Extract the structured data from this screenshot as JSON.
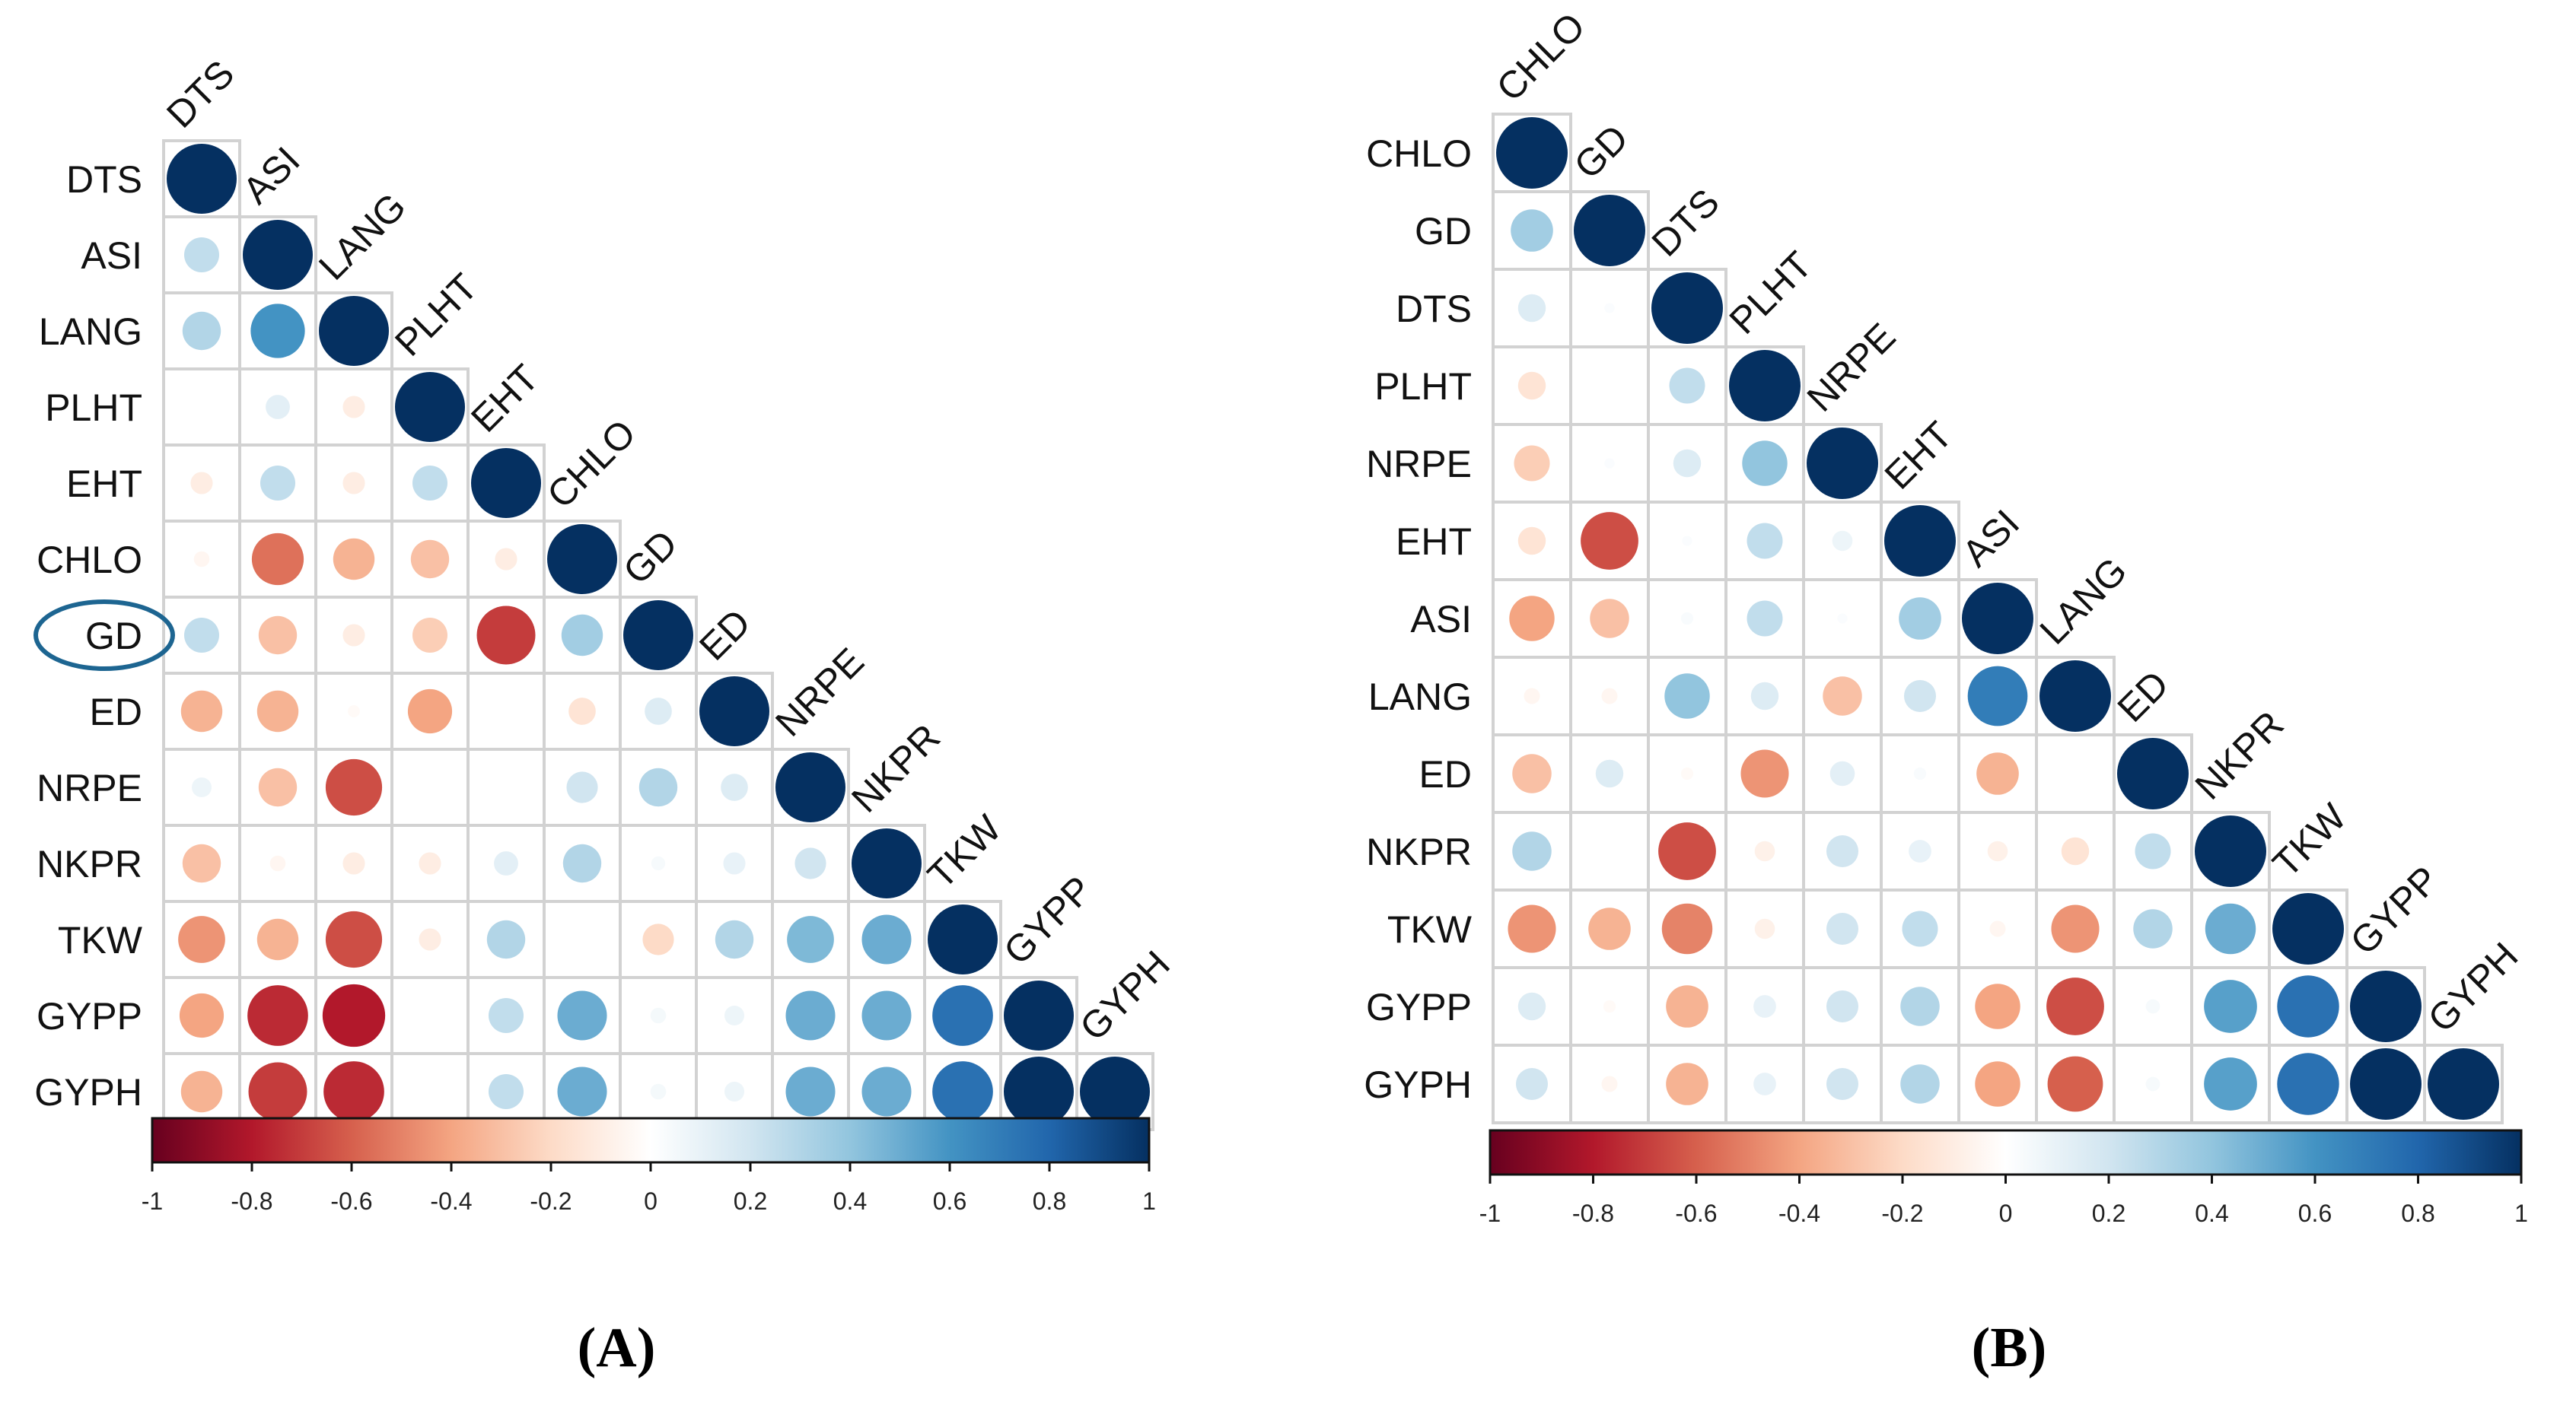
{
  "figure": {
    "caption_a": "(A)",
    "caption_b": "(B)",
    "circled_variable": "GD"
  },
  "chart_data": [
    {
      "type": "heatmap",
      "subtype": "correlation-circle-lower-triangle",
      "panel": "A",
      "title": "",
      "variables": [
        "DTS",
        "ASI",
        "LANG",
        "PLHT",
        "EHT",
        "CHLO",
        "GD",
        "ED",
        "NRPE",
        "NKPR",
        "TKW",
        "GYPP",
        "GYPH"
      ],
      "highlighted_variable": "GD",
      "colorbar": {
        "range": [
          -1,
          1
        ],
        "ticks": [
          "-1",
          "-0.8",
          "-0.6",
          "-0.4",
          "-0.2",
          "0",
          "0.2",
          "0.4",
          "0.6",
          "0.8",
          "1"
        ]
      },
      "matrix": [
        [
          1
        ],
        [
          0.25,
          1
        ],
        [
          0.3,
          0.6,
          1
        ],
        [
          0.0,
          0.12,
          -0.1,
          1
        ],
        [
          -0.1,
          0.25,
          -0.1,
          0.25,
          1
        ],
        [
          -0.05,
          -0.55,
          -0.35,
          -0.3,
          -0.1,
          1
        ],
        [
          0.25,
          -0.3,
          -0.1,
          -0.25,
          -0.7,
          0.35,
          1
        ],
        [
          -0.35,
          -0.35,
          -0.03,
          -0.4,
          0.0,
          -0.15,
          0.15,
          1
        ],
        [
          0.08,
          -0.3,
          -0.65,
          0.0,
          0.0,
          0.2,
          0.3,
          0.15,
          1
        ],
        [
          -0.3,
          -0.05,
          -0.1,
          -0.1,
          0.12,
          0.3,
          0.04,
          0.1,
          0.2,
          1
        ],
        [
          -0.45,
          -0.35,
          -0.65,
          -0.1,
          0.3,
          0.0,
          -0.2,
          0.3,
          0.45,
          0.5,
          1
        ],
        [
          -0.4,
          -0.75,
          -0.8,
          0.0,
          0.25,
          0.5,
          0.05,
          0.08,
          0.5,
          0.5,
          0.75,
          1
        ],
        [
          -0.35,
          -0.7,
          -0.75,
          0.0,
          0.25,
          0.5,
          0.05,
          0.08,
          0.5,
          0.5,
          0.75,
          1.0,
          1
        ]
      ]
    },
    {
      "type": "heatmap",
      "subtype": "correlation-circle-lower-triangle",
      "panel": "B",
      "title": "",
      "variables": [
        "CHLO",
        "GD",
        "DTS",
        "PLHT",
        "NRPE",
        "EHT",
        "ASI",
        "LANG",
        "ED",
        "NKPR",
        "TKW",
        "GYPP",
        "GYPH"
      ],
      "colorbar": {
        "range": [
          -1,
          1
        ],
        "ticks": [
          "-1",
          "-0.8",
          "-0.6",
          "-0.4",
          "-0.2",
          "0",
          "0.2",
          "0.4",
          "0.6",
          "0.8",
          "1"
        ]
      },
      "matrix": [
        [
          1
        ],
        [
          0.35,
          1
        ],
        [
          0.15,
          0.02,
          1
        ],
        [
          -0.15,
          0.0,
          0.25,
          1
        ],
        [
          -0.25,
          0.02,
          0.15,
          0.4,
          1
        ],
        [
          -0.15,
          -0.65,
          0.02,
          0.25,
          0.08,
          1
        ],
        [
          -0.4,
          -0.3,
          0.03,
          0.25,
          0.02,
          0.35,
          1
        ],
        [
          -0.05,
          -0.05,
          0.4,
          0.15,
          -0.3,
          0.2,
          0.7,
          1
        ],
        [
          -0.3,
          0.15,
          -0.03,
          -0.45,
          0.12,
          0.03,
          -0.35,
          0.0,
          1
        ],
        [
          0.3,
          0.0,
          -0.65,
          -0.08,
          0.2,
          0.1,
          -0.08,
          -0.15,
          0.25,
          1
        ],
        [
          -0.45,
          -0.35,
          -0.5,
          -0.08,
          0.2,
          0.25,
          -0.05,
          -0.45,
          0.3,
          0.5,
          1
        ],
        [
          0.15,
          -0.03,
          -0.35,
          0.1,
          0.2,
          0.3,
          -0.4,
          -0.65,
          0.04,
          0.55,
          0.75,
          1
        ],
        [
          0.2,
          -0.05,
          -0.35,
          0.1,
          0.2,
          0.3,
          -0.4,
          -0.6,
          0.04,
          0.55,
          0.75,
          1.0,
          1
        ]
      ]
    }
  ]
}
